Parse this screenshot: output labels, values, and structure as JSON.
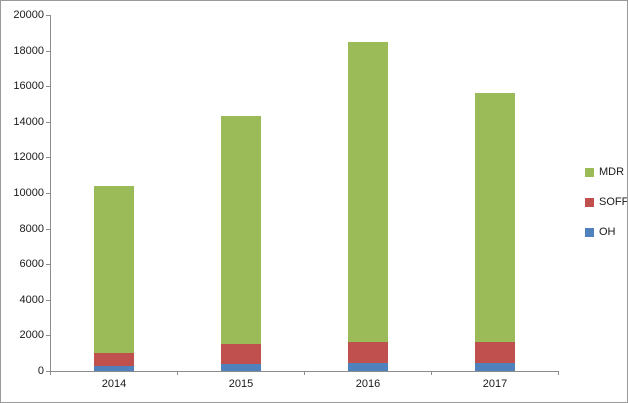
{
  "chart_data": {
    "type": "bar",
    "stacked": true,
    "title": "",
    "xlabel": "",
    "ylabel": "",
    "categories": [
      "2014",
      "2015",
      "2016",
      "2017"
    ],
    "series": [
      {
        "name": "OH",
        "color": "#4f81bd",
        "values": [
          300,
          400,
          450,
          450
        ]
      },
      {
        "name": "SOFF",
        "color": "#c0504d",
        "values": [
          700,
          1100,
          1200,
          1200
        ]
      },
      {
        "name": "MDR",
        "color": "#9bbb59",
        "values": [
          9400,
          12800,
          16850,
          13950
        ]
      }
    ],
    "totals": [
      10400,
      14300,
      18500,
      15600
    ],
    "ylim": [
      0,
      20000
    ],
    "ytick_step": 2000,
    "ytick_labels": [
      "0",
      "2000",
      "4000",
      "6000",
      "8000",
      "10000",
      "12000",
      "14000",
      "16000",
      "18000",
      "20000"
    ],
    "grid": false,
    "legend": {
      "position": "right",
      "entries": [
        {
          "label": "MDR",
          "color": "#9bbb59"
        },
        {
          "label": "SOFF",
          "color": "#c0504d"
        },
        {
          "label": "OH",
          "color": "#4f81bd"
        }
      ]
    }
  }
}
